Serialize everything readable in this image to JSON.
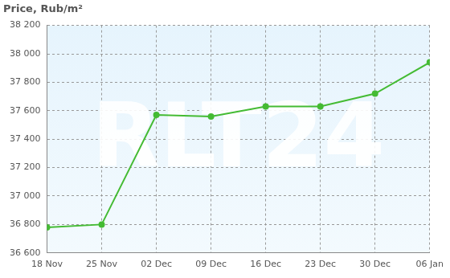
{
  "chart_data": {
    "type": "line",
    "y_label": "Price, Rub/m²",
    "annotations": [
      "RLT24"
    ],
    "categories": [
      "18 Nov",
      "25 Nov",
      "02 Dec",
      "09 Dec",
      "16 Dec",
      "23 Dec",
      "30 Dec",
      "06 Jan"
    ],
    "values": [
      36780,
      36800,
      37570,
      37560,
      37630,
      37630,
      37720,
      37940
    ],
    "color": "#44bb33",
    "marker": "circle",
    "ylim": [
      36600,
      38200
    ],
    "yticks": [
      {
        "value": 36600,
        "label": "36 600"
      },
      {
        "value": 36800,
        "label": "36 800"
      },
      {
        "value": 37000,
        "label": "37 000"
      },
      {
        "value": 37200,
        "label": "37 200"
      },
      {
        "value": 37400,
        "label": "37 400"
      },
      {
        "value": 37600,
        "label": "37 600"
      },
      {
        "value": 37800,
        "label": "37 800"
      },
      {
        "value": 38000,
        "label": "38 000"
      },
      {
        "value": 38200,
        "label": "38 200"
      }
    ],
    "grid": true
  }
}
